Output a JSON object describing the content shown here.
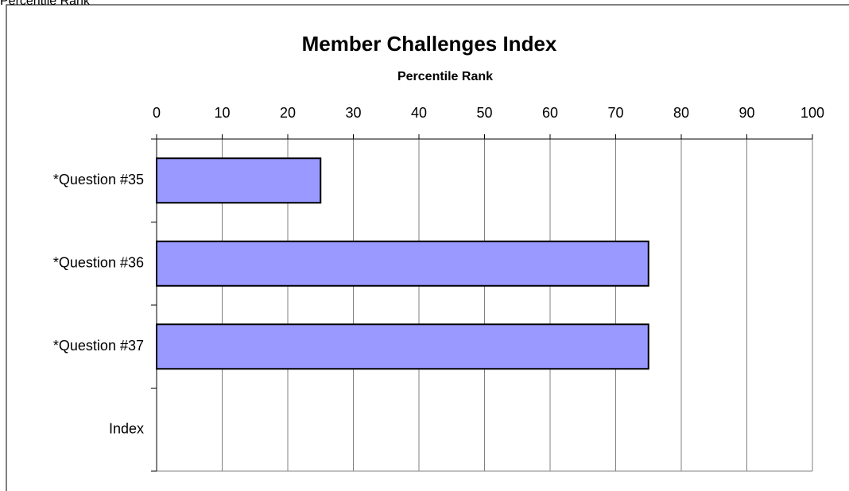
{
  "sheet_label": "Percentile Rank",
  "chart_data": {
    "type": "hbar",
    "title": "Member Challenges Index",
    "subtitle": "Percentile Rank",
    "categories": [
      "*Question #35",
      "*Question #36",
      "*Question #37",
      "Index"
    ],
    "values": [
      25,
      75,
      75,
      null
    ],
    "color": "#9999ff",
    "xlim": [
      0,
      100
    ],
    "xticks": [
      0,
      10,
      20,
      30,
      40,
      50,
      60,
      70,
      80,
      90,
      100
    ],
    "grid": true
  }
}
